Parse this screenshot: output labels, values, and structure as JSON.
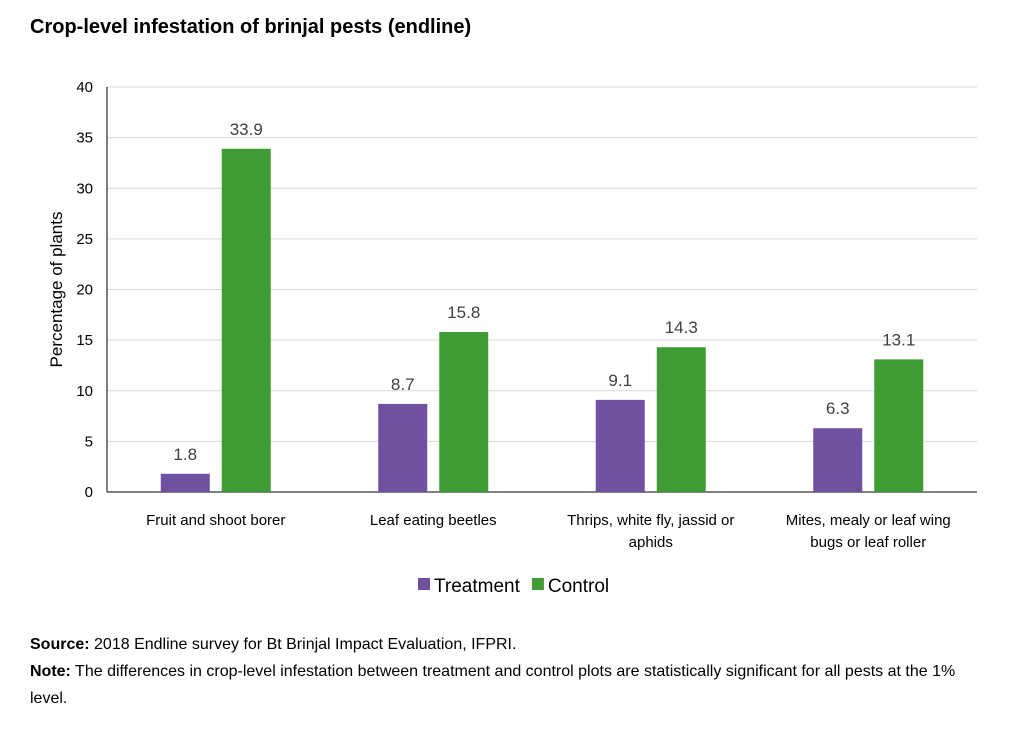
{
  "title": "Crop-level infestation of brinjal pests (endline)",
  "chart_data": {
    "type": "bar",
    "categories": [
      [
        "Fruit and shoot borer"
      ],
      [
        "Leaf eating beetles"
      ],
      [
        "Thrips, white fly, jassid or",
        "aphids"
      ],
      [
        "Mites, mealy or leaf wing",
        "bugs or leaf roller"
      ]
    ],
    "series": [
      {
        "name": "Treatment",
        "color": "#7050a0",
        "values": [
          1.8,
          8.7,
          9.1,
          6.3
        ]
      },
      {
        "name": "Control",
        "color": "#3f9c35",
        "values": [
          33.9,
          15.8,
          14.3,
          13.1
        ]
      }
    ],
    "ylabel": "Percentage of plants",
    "xlabel": "",
    "ylim": [
      0,
      40
    ],
    "yticks": [
      0,
      5,
      10,
      15,
      20,
      25,
      30,
      35,
      40
    ],
    "grid": true,
    "legend_position": "bottom"
  },
  "notes": {
    "source_label": "Source:",
    "source_text": " 2018 Endline survey for Bt Brinjal Impact Evaluation, IFPRI.",
    "note_label": "Note:",
    "note_text": " The differences in crop-level infestation between treatment and control plots are statistically significant for all pests at the 1% level."
  }
}
